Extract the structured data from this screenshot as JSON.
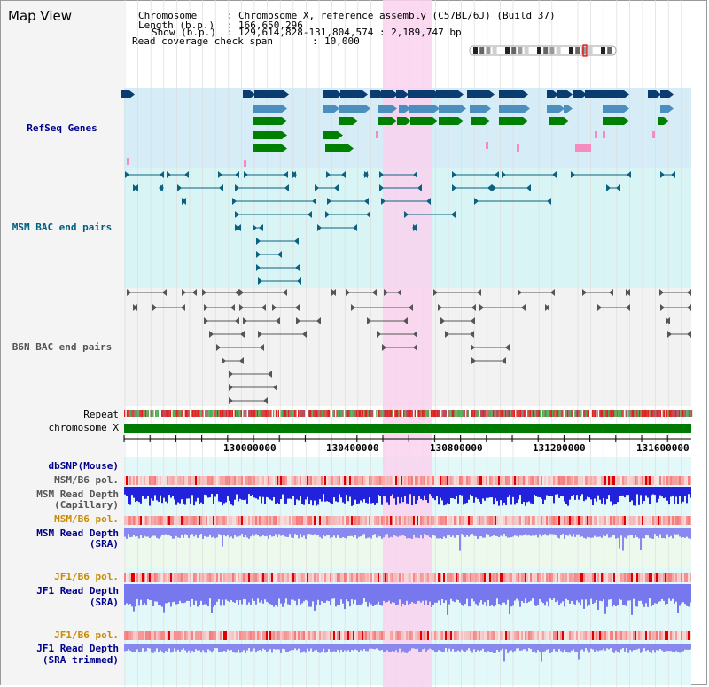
{
  "map_view": {
    "title": "Map View",
    "info": {
      "chromosome_label": "Chromosome",
      "chromosome_value": "Chromosome X, reference assembly (C57BL/6J) (Build 37)",
      "length_label": "Length (b.p.)",
      "length_value": "166,650,296",
      "show_label": "Show (b.p.)",
      "show_value": "129,614,828-131,804,574 : 2,189,747 bp",
      "coverage_label": "Read coverage check span",
      "coverage_value": "10,000"
    },
    "tracks": {
      "refseq": "RefSeq Genes",
      "msm_bac": "MSM BAC end pairs",
      "b6n_bac": "B6N BAC end pairs",
      "repeat": "Repeat",
      "chromosome": "chromosome X",
      "dbsnp": "dbSNP(Mouse)",
      "msm_b6_pol_1": "MSM/B6 pol.",
      "msm_read_depth_cap_1": "MSM Read Depth",
      "msm_read_depth_cap_2": "(Capillary)",
      "msm_b6_pol_2": "MSM/B6 pol.",
      "msm_read_depth_sra_1": "MSM Read Depth",
      "msm_read_depth_sra_2": "(SRA)",
      "jf1_b6_pol_1": "JF1/B6 pol.",
      "jf1_read_depth_sra_1": "JF1 Read Depth",
      "jf1_read_depth_sra_2": "(SRA)",
      "jf1_b6_pol_2": "JF1/B6 pol.",
      "jf1_read_depth_trim_1": "JF1 Read Depth",
      "jf1_read_depth_trim_2": "(SRA trimmed)"
    },
    "axis_ticks": [
      "130000000",
      "130400000",
      "130800000",
      "131200000",
      "131600000"
    ],
    "colors": {
      "refseq_bg": "#d6ecf7",
      "msm_bg": "#d8f4f4",
      "b6n_bg": "#f2f2f2",
      "highlight": "#f9d2ee",
      "navy": "#0a3c70",
      "steel": "#4a8fbd",
      "green": "#008000",
      "pink": "#f48cc0",
      "bac_msm": "#0c6080",
      "bac_b6n": "#555555",
      "label_blue": "#00008b",
      "label_teal": "#005f7f",
      "label_gray": "#555555",
      "label_orange": "#c88c00"
    }
  }
}
